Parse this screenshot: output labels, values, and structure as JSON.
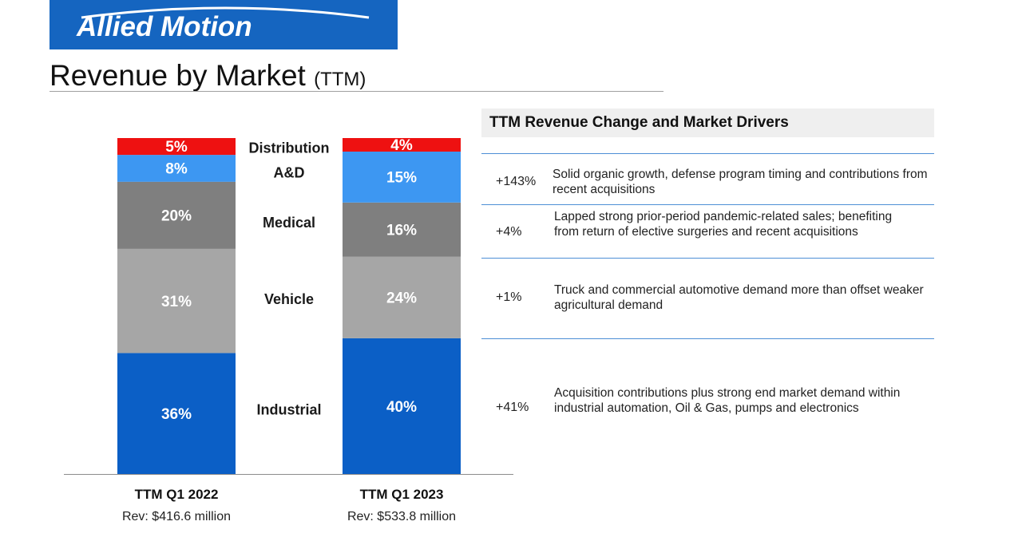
{
  "brand": {
    "name": "Allied Motion",
    "color": "#1565c0"
  },
  "page": {
    "title": "Revenue by Market",
    "title_suffix": "(TTM)"
  },
  "chart_data": {
    "type": "bar",
    "stacked": true,
    "unit": "percent of revenue",
    "categories": [
      "TTM Q1 2022",
      "TTM Q1 2023"
    ],
    "category_subtitles": [
      "Rev: $416.6 million",
      "Rev: $533.8 million"
    ],
    "series": [
      {
        "name": "Industrial",
        "color": "#0b5fc6",
        "values": [
          36,
          40
        ],
        "labels": [
          "36%",
          "40%"
        ]
      },
      {
        "name": "Vehicle",
        "color": "#a6a6a6",
        "values": [
          31,
          24
        ],
        "labels": [
          "31%",
          "24%"
        ]
      },
      {
        "name": "Medical",
        "color": "#7f7f7f",
        "values": [
          20,
          16
        ],
        "labels": [
          "20%",
          "16%"
        ]
      },
      {
        "name": "A&D",
        "color": "#3d97f2",
        "values": [
          8,
          15
        ],
        "labels": [
          "8%",
          "15%"
        ]
      },
      {
        "name": "Distribution",
        "color": "#ee1111",
        "values": [
          5,
          4
        ],
        "labels": [
          "5%",
          "4%"
        ]
      }
    ],
    "legend": "center, between bars",
    "ylim": [
      0,
      100
    ]
  },
  "drivers": {
    "header": "TTM Revenue Change and Market Drivers",
    "rows": [
      {
        "change": "+143%",
        "text": "Solid organic growth, defense program timing and contributions from recent acquisitions"
      },
      {
        "change": "+4%",
        "text": "Lapped strong prior-period pandemic-related sales; benefiting from return of elective surgeries and recent acquisitions"
      },
      {
        "change": "+1%",
        "text": "Truck and commercial automotive demand more than offset weaker agricultural demand"
      },
      {
        "change": "+41%",
        "text": "Acquisition contributions plus strong end market demand within industrial automation, Oil & Gas, pumps and electronics"
      }
    ]
  }
}
